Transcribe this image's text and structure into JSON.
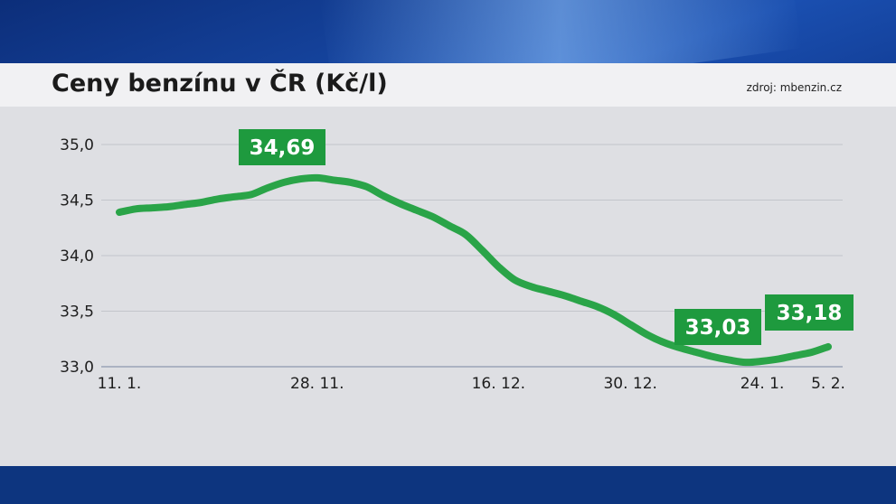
{
  "title": "Ceny benzínu v ČR (Kč/l)",
  "source": "zdroj: mbenzin.cz",
  "colors": {
    "line": "#2aa448",
    "label_bg": "#1e9a3e",
    "grid": "#c3c5cb",
    "axis": "#9aa3b8"
  },
  "chart_data": {
    "type": "line",
    "title": "Ceny benzínu v ČR (Kč/l)",
    "xlabel": "",
    "ylabel": "",
    "ylim": [
      33.0,
      35.0
    ],
    "yticks": [
      "35,0",
      "34,5",
      "34,0",
      "33,5",
      "33,0"
    ],
    "ytick_values": [
      35.0,
      34.5,
      34.0,
      33.5,
      33.0
    ],
    "xticks": [
      "11. 1.",
      "28. 11.",
      "16. 12.",
      "30. 12.",
      "24. 1.",
      "5. 2."
    ],
    "grid": true,
    "series": [
      {
        "values": [
          34.39,
          34.42,
          34.43,
          34.44,
          34.46,
          34.48,
          34.51,
          34.53,
          34.55,
          34.61,
          34.66,
          34.69,
          34.7,
          34.68,
          34.66,
          34.62,
          34.54,
          34.47,
          34.41,
          34.35,
          34.27,
          34.19,
          34.05,
          33.9,
          33.78,
          33.72,
          33.68,
          33.64,
          33.59,
          33.54,
          33.47,
          33.38,
          33.29,
          33.22,
          33.17,
          33.13,
          33.09,
          33.06,
          33.04,
          33.05,
          33.07,
          33.1,
          33.13,
          33.18
        ]
      }
    ],
    "annotations": [
      {
        "text": "34,69",
        "value": 34.69
      },
      {
        "text": "33,03",
        "value": 33.03
      },
      {
        "text": "33,18",
        "value": 33.18
      }
    ]
  }
}
